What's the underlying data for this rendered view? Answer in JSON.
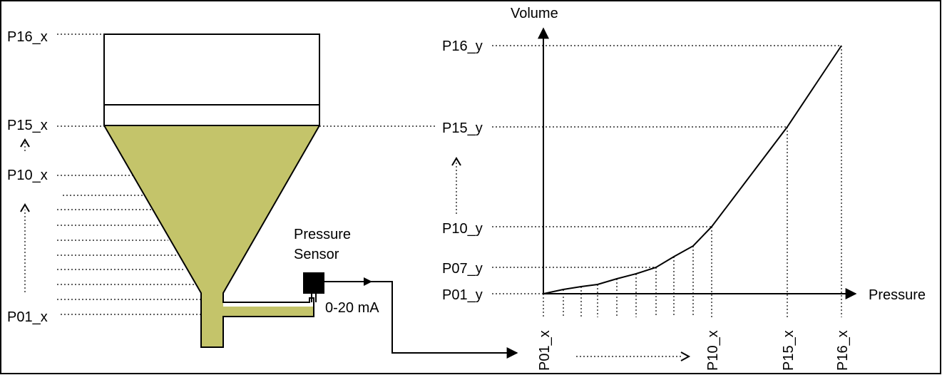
{
  "tank": {
    "levels_left": [
      "P16_x",
      "P15_x",
      "P10_x",
      "P01_x"
    ],
    "sensor_label_line1": "Pressure",
    "sensor_label_line2": "Sensor",
    "signal_label": "0-20 mA",
    "fill_color": "#c4c46a"
  },
  "graph": {
    "y_axis_label": "Volume",
    "x_axis_label": "Pressure",
    "y_ticks": [
      "P16_y",
      "P15_y",
      "P10_y",
      "P07_y",
      "P01_y"
    ],
    "x_ticks": [
      "P01_x",
      "P10_x",
      "P15_x",
      "P16_x"
    ]
  }
}
